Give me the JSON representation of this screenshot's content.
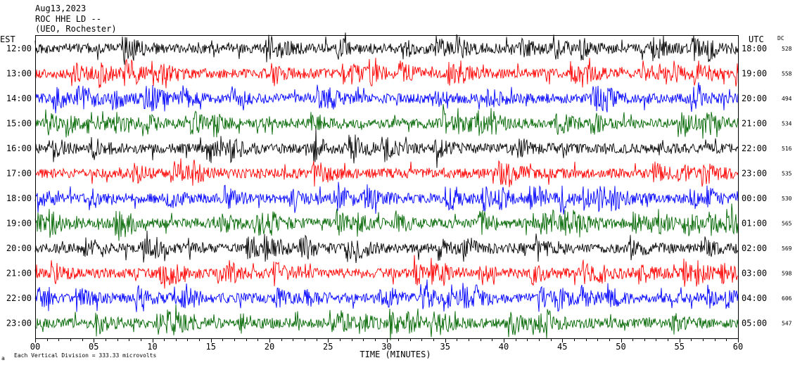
{
  "header": {
    "date": "Aug13,2023",
    "station_line": "ROC HHE LD --",
    "location_line": "(UEO, Rochester)"
  },
  "left_label": "EST",
  "right_label": "UTC",
  "dc_label": "DC",
  "footer": {
    "xlabel": "TIME (MINUTES)",
    "scale_note": "Each Vertical Division = 333.33 microvolts",
    "corner_mark": "a"
  },
  "colors": {
    "cycle": [
      "#000000",
      "#ff0000",
      "#0000ff",
      "#006600"
    ],
    "axis": "#000000",
    "background": "#ffffff"
  },
  "chart_data": {
    "type": "line",
    "title": "",
    "xlabel": "TIME (MINUTES)",
    "ylabel": "",
    "xlim": [
      0,
      60
    ],
    "x_ticks": [
      "00",
      "05",
      "10",
      "15",
      "20",
      "25",
      "30",
      "35",
      "40",
      "45",
      "50",
      "55",
      "60"
    ],
    "rows": [
      {
        "local": "12:00",
        "utc": "18:00",
        "dc": "528",
        "color": "#000000"
      },
      {
        "local": "13:00",
        "utc": "19:00",
        "dc": "558",
        "color": "#ff0000"
      },
      {
        "local": "14:00",
        "utc": "20:00",
        "dc": "494",
        "color": "#0000ff"
      },
      {
        "local": "15:00",
        "utc": "21:00",
        "dc": "534",
        "color": "#006600"
      },
      {
        "local": "16:00",
        "utc": "22:00",
        "dc": "516",
        "color": "#000000"
      },
      {
        "local": "17:00",
        "utc": "23:00",
        "dc": "535",
        "color": "#ff0000"
      },
      {
        "local": "18:00",
        "utc": "00:00",
        "dc": "530",
        "color": "#0000ff"
      },
      {
        "local": "19:00",
        "utc": "01:00",
        "dc": "565",
        "color": "#006600"
      },
      {
        "local": "20:00",
        "utc": "02:00",
        "dc": "569",
        "color": "#000000"
      },
      {
        "local": "21:00",
        "utc": "03:00",
        "dc": "598",
        "color": "#ff0000"
      },
      {
        "local": "22:00",
        "utc": "04:00",
        "dc": "606",
        "color": "#0000ff"
      },
      {
        "local": "23:00",
        "utc": "05:00",
        "dc": "547",
        "color": "#006600"
      }
    ],
    "grid": false,
    "legend": "none"
  }
}
